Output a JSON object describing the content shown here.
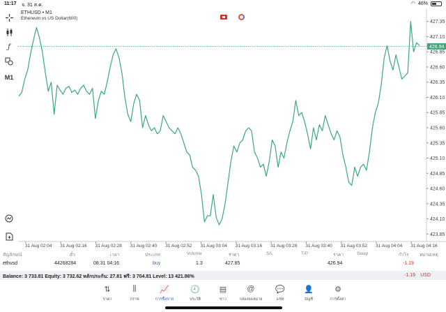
{
  "status": {
    "time": "11:17",
    "date": "จ. 31 ส.ค.",
    "battery": "46%",
    "battery_level": 0.46
  },
  "toolbar": {
    "crosshair_icon": "crosshair-icon",
    "indicators_icon": "candlestick-icon",
    "function_icon": "function-icon",
    "objects_icon": "shapes-icon",
    "timeframe": "M1",
    "trade_icon": "clock-trade-icon",
    "new_order_icon": "new-order-icon"
  },
  "chart_data": {
    "type": "line",
    "title": "ETHUSD • M1",
    "subtitle": "Ethereum vs US Dollar(600)",
    "x_labels": [
      "31 Aug 02:04",
      "31 Aug 02:16",
      "31 Aug 02:28",
      "31 Aug 02:40",
      "31 Aug 02:52",
      "31 Aug 03:04",
      "31 Aug 03:16",
      "31 Aug 03:28",
      "31 Aug 03:40",
      "31 Aug 03:52",
      "31 Aug 04:04",
      "31 Aug 04:16"
    ],
    "y_ticks": [
      "427.35",
      "427.10",
      "426.85",
      "426.60",
      "426.35",
      "426.10",
      "425.85",
      "425.60",
      "425.35",
      "425.10",
      "424.85",
      "424.60",
      "424.35",
      "424.10",
      "423.85"
    ],
    "ylim": [
      423.75,
      427.45
    ],
    "current_price": "426.94",
    "current_value": 426.94,
    "line_color": "#3aa87a",
    "values": [
      426.12,
      426.18,
      426.4,
      426.55,
      426.82,
      427.05,
      427.25,
      427.08,
      426.85,
      426.5,
      426.2,
      426.35,
      425.82,
      426.3,
      426.22,
      426.15,
      426.25,
      426.28,
      426.18,
      426.22,
      426.15,
      426.25,
      426.3,
      426.2,
      426.15,
      426.25,
      425.75,
      426.05,
      426.2,
      426.15,
      426.35,
      426.6,
      426.8,
      426.9,
      426.75,
      426.5,
      426.1,
      425.82,
      425.7,
      426.0,
      426.15,
      426.05,
      425.6,
      425.8,
      425.65,
      425.55,
      425.6,
      425.5,
      425.55,
      425.8,
      425.7,
      425.6,
      425.55,
      425.5,
      425.6,
      425.5,
      425.35,
      425.2,
      425.15,
      424.95,
      424.9,
      424.8,
      424.5,
      424.05,
      424.15,
      424.15,
      424.5,
      424.12,
      424.0,
      424.1,
      424.35,
      424.7,
      425.05,
      425.3,
      425.2,
      425.35,
      425.4,
      425.55,
      425.6,
      425.55,
      425.2,
      425.1,
      424.95,
      425.0,
      424.8,
      425.05,
      425.4,
      425.3,
      424.95,
      425.2,
      425.1,
      425.35,
      425.55,
      425.7,
      426.05,
      425.8,
      425.85,
      425.7,
      425.5,
      425.25,
      425.6,
      425.4,
      425.65,
      425.55,
      425.8,
      425.65,
      425.5,
      425.4,
      425.55,
      425.45,
      425.15,
      424.95,
      424.7,
      424.65,
      424.95,
      424.8,
      424.95,
      425.0,
      424.9,
      425.2,
      425.6,
      425.85,
      426.0,
      426.3,
      426.75,
      426.95,
      426.7,
      426.55,
      426.8,
      426.6,
      426.4,
      426.45,
      426.5,
      427.35,
      426.85,
      427.0,
      426.95
    ]
  },
  "positions": {
    "headers": {
      "symbol": "สัญลักษณ์",
      "ticket": "ตั๋ว",
      "time": "เวลา",
      "type": "ประเภท",
      "volume": "Volume",
      "price": "ราคา",
      "sl": "S/L",
      "tp": "T/P",
      "price2": "ราคา",
      "swap": "Swap",
      "profit": "กำไร",
      "comment": "หมายเหตุ"
    },
    "row": {
      "symbol": "ethusd",
      "ticket": "44268284",
      "time": "08.31 04:16",
      "type": "buy",
      "volume": "1.3",
      "price": "427.85",
      "current": "426.94",
      "profit": "-1.19"
    }
  },
  "balance": {
    "text": "Balance: 3 733.81 Equity: 3 732.62 หลักประกัน: 27.81 ฟรี: 3 704.81 Level: 13 421.86%",
    "profit": "-1.19",
    "currency": "USD"
  },
  "tabs": [
    {
      "label": "ราคา",
      "icon": "arrows-updown-icon",
      "glyph": "⇅"
    },
    {
      "label": "กราฟ",
      "icon": "candles-icon",
      "glyph": "⫼"
    },
    {
      "label": "การซื้อขาย",
      "icon": "trade-chart-icon",
      "glyph": "📈",
      "active": true
    },
    {
      "label": "ประวัติ",
      "icon": "history-icon",
      "glyph": "🕘"
    },
    {
      "label": "ข่าว",
      "icon": "news-icon",
      "glyph": "▤"
    },
    {
      "label": "กล่องจดหมาย",
      "icon": "mailbox-icon",
      "glyph": "@"
    },
    {
      "label": "แชท",
      "icon": "chat-icon",
      "glyph": "💬"
    },
    {
      "label": "บัญชี",
      "icon": "account-icon",
      "glyph": "👤"
    },
    {
      "label": "การตั้งค่า",
      "icon": "settings-icon",
      "glyph": "⚙"
    }
  ]
}
